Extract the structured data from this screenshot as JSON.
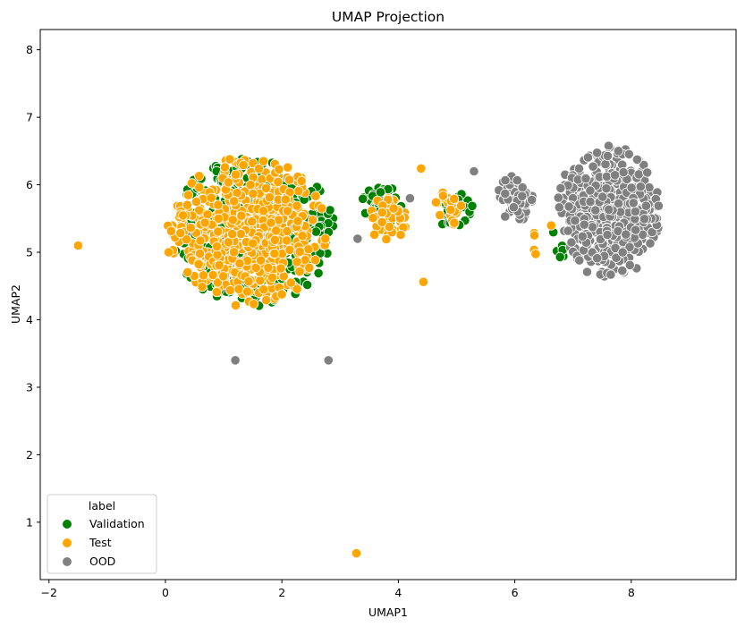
{
  "chart_data": {
    "type": "scatter",
    "title": "UMAP Projection",
    "xlabel": "UMAP1",
    "ylabel": "UMAP2",
    "xlim": [
      -2.15,
      9.8
    ],
    "ylim": [
      0.15,
      8.3
    ],
    "xticks": [
      -2,
      0,
      2,
      4,
      6,
      8
    ],
    "yticks": [
      1,
      2,
      3,
      4,
      5,
      6,
      7,
      8
    ],
    "grid": false,
    "legend": {
      "title": "label",
      "position": "lower-left",
      "entries": [
        "Validation",
        "Test",
        "OOD"
      ]
    },
    "series": [
      {
        "name": "Validation",
        "color": "#008000",
        "clusters": [
          {
            "center": [
              1.5,
              5.3
            ],
            "spread": [
              1.35,
              1.05
            ],
            "count": 600
          },
          {
            "center": [
              3.7,
              5.7
            ],
            "spread": [
              0.35,
              0.3
            ],
            "count": 40
          },
          {
            "center": [
              5.0,
              5.6
            ],
            "spread": [
              0.3,
              0.3
            ],
            "count": 25
          },
          {
            "center": [
              6.8,
              5.3
            ],
            "spread": [
              0.3,
              0.4
            ],
            "count": 8
          }
        ]
      },
      {
        "name": "Test",
        "color": "#FFA500",
        "clusters": [
          {
            "center": [
              1.4,
              5.3
            ],
            "spread": [
              1.35,
              1.05
            ],
            "count": 560
          },
          {
            "center": [
              3.8,
              5.5
            ],
            "spread": [
              0.35,
              0.35
            ],
            "count": 40
          },
          {
            "center": [
              4.9,
              5.7
            ],
            "spread": [
              0.3,
              0.3
            ],
            "count": 20
          },
          {
            "center": [
              6.4,
              5.2
            ],
            "spread": [
              0.3,
              0.4
            ],
            "count": 6
          }
        ],
        "points": [
          [
            3.28,
            0.54
          ],
          [
            4.43,
            4.56
          ],
          [
            4.39,
            6.24
          ],
          [
            -1.5,
            5.1
          ]
        ]
      },
      {
        "name": "OOD",
        "color": "#808080",
        "clusters": [
          {
            "center": [
              7.6,
              5.6
            ],
            "spread": [
              0.85,
              0.95
            ],
            "count": 560
          },
          {
            "center": [
              6.0,
              5.8
            ],
            "spread": [
              0.35,
              0.35
            ],
            "count": 60
          }
        ],
        "points": [
          [
            2.8,
            3.4
          ],
          [
            1.2,
            3.4
          ],
          [
            4.2,
            5.8
          ],
          [
            3.3,
            5.2
          ],
          [
            5.3,
            6.2
          ]
        ]
      }
    ]
  }
}
